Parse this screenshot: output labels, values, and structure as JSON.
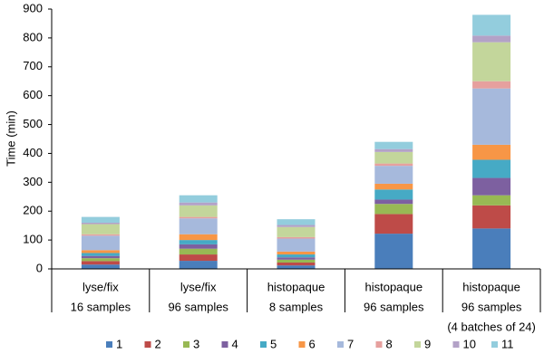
{
  "chart_data": {
    "type": "stacked_bar",
    "y_label": "Time (min)",
    "categories": [
      [
        "lyse/fix",
        "16 samples"
      ],
      [
        "lyse/fix",
        "96 samples"
      ],
      [
        "histopaque",
        "8 samples"
      ],
      [
        "histopaque",
        "96 samples"
      ],
      [
        "histopaque",
        "96 samples",
        "(4 batches of 24)"
      ]
    ],
    "series": [
      {
        "name": "1",
        "color": "#4a7ebb",
        "values": [
          15,
          28,
          12,
          122,
          140
        ]
      },
      {
        "name": "2",
        "color": "#be4b48",
        "values": [
          12,
          22,
          10,
          68,
          80
        ]
      },
      {
        "name": "3",
        "color": "#98b954",
        "values": [
          10,
          20,
          10,
          35,
          35
        ]
      },
      {
        "name": "4",
        "color": "#7d60a0",
        "values": [
          8,
          15,
          8,
          15,
          60
        ]
      },
      {
        "name": "5",
        "color": "#46aac5",
        "values": [
          10,
          15,
          10,
          35,
          63
        ]
      },
      {
        "name": "6",
        "color": "#f79646",
        "values": [
          10,
          20,
          10,
          20,
          52
        ]
      },
      {
        "name": "7",
        "color": "#a6b9dc",
        "values": [
          50,
          55,
          45,
          62,
          195
        ]
      },
      {
        "name": "8",
        "color": "#e6a09e",
        "values": [
          5,
          5,
          5,
          8,
          25
        ]
      },
      {
        "name": "9",
        "color": "#c3d69b",
        "values": [
          35,
          40,
          35,
          40,
          135
        ]
      },
      {
        "name": "10",
        "color": "#b3a2c7",
        "values": [
          5,
          10,
          7,
          10,
          23
        ]
      },
      {
        "name": "11",
        "color": "#93cddd",
        "values": [
          20,
          25,
          20,
          25,
          72
        ]
      }
    ],
    "ylim": [
      0,
      900
    ],
    "yticks": [
      0,
      100,
      200,
      300,
      400,
      500,
      600,
      700,
      800,
      900
    ],
    "grid": false,
    "legend": "bottom"
  }
}
